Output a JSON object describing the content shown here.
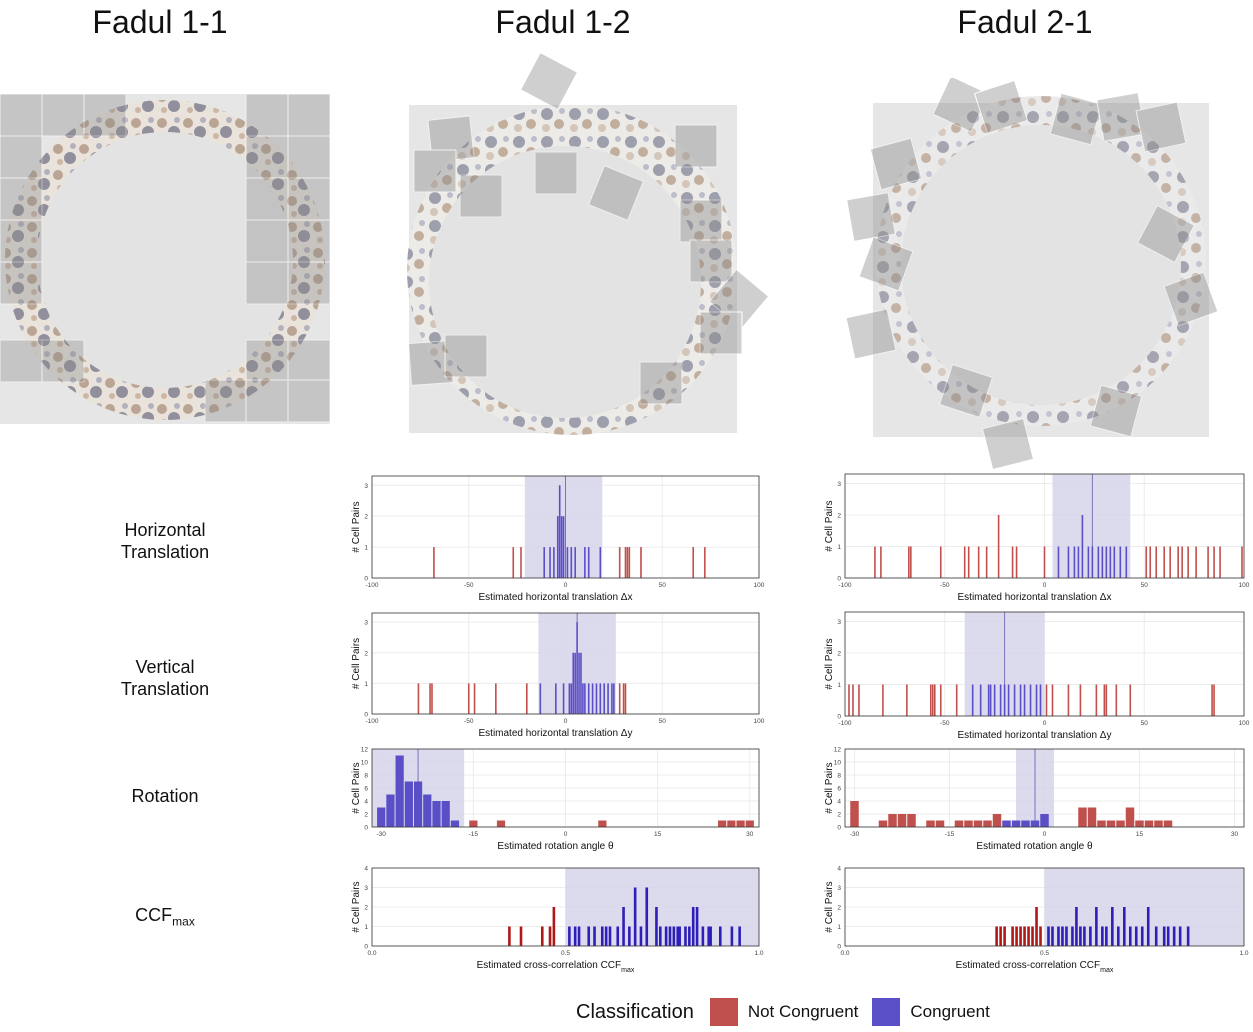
{
  "columns": [
    "Fadul 1-1",
    "Fadul 1-2",
    "Fadul 2-1"
  ],
  "row_labels": {
    "horizontal": [
      "Horizontal",
      "Translation"
    ],
    "vertical": [
      "Vertical",
      "Translation"
    ],
    "rotation": [
      "Rotation"
    ],
    "ccf_main": "CCF",
    "ccf_sub": "max"
  },
  "colors": {
    "not_congruent": "#c0504d",
    "congruent": "#5b4fc7",
    "band": "#d6d3ea",
    "ccf_red": "#b01818",
    "ccf_blue": "#2e1fb8"
  },
  "legend": {
    "title": "Classification",
    "items": [
      "Not Congruent",
      "Congruent"
    ]
  },
  "chart_data": [
    {
      "id": "c12_dx",
      "type": "bar",
      "ylabel": "# Cell Pairs",
      "xlabel": "Estimated horizontal translation Δx",
      "xlim": [
        -100,
        100
      ],
      "ylim": [
        0,
        3.3
      ],
      "xticks": [
        -100,
        -50,
        0,
        50,
        100
      ],
      "yticks": [
        0,
        1,
        2,
        3
      ],
      "band": [
        -21,
        19
      ],
      "vline": 0,
      "red": [
        [
          -68,
          1
        ],
        [
          -27,
          1
        ],
        [
          -23,
          1
        ],
        [
          28,
          1
        ],
        [
          31,
          1
        ],
        [
          32,
          1
        ],
        [
          33,
          1
        ],
        [
          39,
          1
        ],
        [
          66,
          1
        ],
        [
          72,
          1
        ]
      ],
      "blue": [
        [
          -11,
          1
        ],
        [
          -8,
          1
        ],
        [
          -6,
          1
        ],
        [
          -4,
          2
        ],
        [
          -3,
          3
        ],
        [
          -2,
          2
        ],
        [
          -1,
          2
        ],
        [
          1,
          1
        ],
        [
          3,
          1
        ],
        [
          5,
          1
        ],
        [
          10,
          1
        ],
        [
          12,
          1
        ],
        [
          18,
          1
        ]
      ]
    },
    {
      "id": "c21_dx",
      "type": "bar",
      "ylabel": "# Cell Pairs",
      "xlabel": "Estimated horizontal translation Δx",
      "xlim": [
        -100,
        100
      ],
      "ylim": [
        0,
        3.3
      ],
      "xticks": [
        -100,
        -50,
        0,
        50,
        100
      ],
      "yticks": [
        0,
        1,
        2,
        3
      ],
      "band": [
        4,
        43
      ],
      "vline": 24,
      "red": [
        [
          -85,
          1
        ],
        [
          -82,
          1
        ],
        [
          -68,
          1
        ],
        [
          -67,
          1
        ],
        [
          -52,
          1
        ],
        [
          -40,
          1
        ],
        [
          -38,
          1
        ],
        [
          -33,
          1
        ],
        [
          -29,
          1
        ],
        [
          -23,
          2
        ],
        [
          -16,
          1
        ],
        [
          -14,
          1
        ],
        [
          0,
          1
        ],
        [
          51,
          1
        ],
        [
          53,
          1
        ],
        [
          56,
          1
        ],
        [
          60,
          1
        ],
        [
          63,
          1
        ],
        [
          67,
          1
        ],
        [
          69,
          1
        ],
        [
          72,
          1
        ],
        [
          76,
          1
        ],
        [
          82,
          1
        ],
        [
          85,
          1
        ],
        [
          88,
          1
        ],
        [
          99,
          1
        ]
      ],
      "blue": [
        [
          7,
          1
        ],
        [
          12,
          1
        ],
        [
          15,
          1
        ],
        [
          17,
          1
        ],
        [
          19,
          2
        ],
        [
          22,
          1
        ],
        [
          24,
          1
        ],
        [
          27,
          1
        ],
        [
          29,
          1
        ],
        [
          31,
          1
        ],
        [
          33,
          1
        ],
        [
          35,
          1
        ],
        [
          38,
          1
        ],
        [
          41,
          1
        ]
      ]
    },
    {
      "id": "c12_dy",
      "type": "bar",
      "ylabel": "# Cell Pairs",
      "xlabel": "Estimated horizontal translation Δy",
      "xlim": [
        -100,
        100
      ],
      "ylim": [
        0,
        3.3
      ],
      "xticks": [
        -100,
        -50,
        0,
        50,
        100
      ],
      "yticks": [
        0,
        1,
        2,
        3
      ],
      "band": [
        -14,
        26
      ],
      "vline": 6,
      "red": [
        [
          -76,
          1
        ],
        [
          -70,
          1
        ],
        [
          -69,
          1
        ],
        [
          -50,
          1
        ],
        [
          -47,
          1
        ],
        [
          -36,
          1
        ],
        [
          -20,
          1
        ],
        [
          28,
          1
        ],
        [
          30,
          1
        ],
        [
          31,
          1
        ]
      ],
      "blue": [
        [
          -13,
          1
        ],
        [
          -5,
          1
        ],
        [
          -1,
          1
        ],
        [
          2,
          1
        ],
        [
          3,
          1
        ],
        [
          4,
          2
        ],
        [
          5,
          2
        ],
        [
          6,
          3
        ],
        [
          7,
          2
        ],
        [
          8,
          2
        ],
        [
          9,
          1
        ],
        [
          10,
          1
        ],
        [
          12,
          1
        ],
        [
          14,
          1
        ],
        [
          16,
          1
        ],
        [
          18,
          1
        ],
        [
          20,
          1
        ],
        [
          22,
          1
        ],
        [
          24,
          1
        ],
        [
          25,
          1
        ]
      ]
    },
    {
      "id": "c21_dy",
      "type": "bar",
      "ylabel": "# Cell Pairs",
      "xlabel": "Estimated horizontal translation Δy",
      "xlim": [
        -100,
        100
      ],
      "ylim": [
        0,
        3.3
      ],
      "xticks": [
        -100,
        -50,
        0,
        50,
        100
      ],
      "yticks": [
        0,
        1,
        2,
        3
      ],
      "band": [
        -40,
        0
      ],
      "vline": -20,
      "red": [
        [
          -98,
          1
        ],
        [
          -96,
          1
        ],
        [
          -93,
          1
        ],
        [
          -81,
          1
        ],
        [
          -69,
          1
        ],
        [
          -57,
          1
        ],
        [
          -56,
          1
        ],
        [
          -55,
          1
        ],
        [
          -52,
          1
        ],
        [
          -44,
          1
        ],
        [
          1,
          1
        ],
        [
          4,
          1
        ],
        [
          12,
          1
        ],
        [
          18,
          1
        ],
        [
          26,
          1
        ],
        [
          30,
          1
        ],
        [
          31,
          1
        ],
        [
          36,
          1
        ],
        [
          43,
          1
        ],
        [
          84,
          1
        ],
        [
          85,
          1
        ]
      ],
      "blue": [
        [
          -36,
          1
        ],
        [
          -32,
          1
        ],
        [
          -28,
          1
        ],
        [
          -27,
          1
        ],
        [
          -25,
          1
        ],
        [
          -22,
          1
        ],
        [
          -20,
          1
        ],
        [
          -18,
          1
        ],
        [
          -15,
          1
        ],
        [
          -12,
          1
        ],
        [
          -10,
          1
        ],
        [
          -7,
          1
        ],
        [
          -4,
          1
        ],
        [
          -2,
          1
        ]
      ]
    },
    {
      "id": "c12_rot",
      "type": "histogram",
      "ylabel": "# Cell Pairs",
      "xlabel": "Estimated rotation angle θ",
      "xlim": [
        -31.5,
        31.5
      ],
      "ylim": [
        0,
        12
      ],
      "xticks": [
        -30,
        -15,
        0,
        15,
        30
      ],
      "yticks": [
        0,
        2,
        4,
        6,
        8,
        10,
        12
      ],
      "band": [
        -31.5,
        -16.5
      ],
      "vline": -24,
      "binwidth": 1.5,
      "blue": [
        [
          -30,
          3
        ],
        [
          -28.5,
          5
        ],
        [
          -27,
          11
        ],
        [
          -25.5,
          7
        ],
        [
          -24,
          7
        ],
        [
          -22.5,
          5
        ],
        [
          -21,
          4
        ],
        [
          -19.5,
          4
        ],
        [
          -18,
          1
        ]
      ],
      "red": [
        [
          -15,
          1
        ],
        [
          -10.5,
          1
        ],
        [
          6,
          1
        ],
        [
          25.5,
          1
        ],
        [
          27,
          1
        ],
        [
          28.5,
          1
        ],
        [
          30,
          1
        ]
      ]
    },
    {
      "id": "c21_rot",
      "type": "histogram",
      "ylabel": "# Cell Pairs",
      "xlabel": "Estimated rotation angle θ",
      "xlim": [
        -31.5,
        31.5
      ],
      "ylim": [
        0,
        12
      ],
      "xticks": [
        -30,
        -15,
        0,
        15,
        30
      ],
      "yticks": [
        0,
        2,
        4,
        6,
        8,
        10,
        12
      ],
      "band": [
        -4.5,
        1.5
      ],
      "vline": -1.5,
      "binwidth": 1.5,
      "red": [
        [
          -30,
          4
        ],
        [
          -25.5,
          1
        ],
        [
          -24,
          2
        ],
        [
          -22.5,
          2
        ],
        [
          -21,
          2
        ],
        [
          -18,
          1
        ],
        [
          -16.5,
          1
        ],
        [
          -13.5,
          1
        ],
        [
          -12,
          1
        ],
        [
          -10.5,
          1
        ],
        [
          -9,
          1
        ],
        [
          -7.5,
          2
        ],
        [
          6,
          3
        ],
        [
          7.5,
          3
        ],
        [
          9,
          1
        ],
        [
          10.5,
          1
        ],
        [
          12,
          1
        ],
        [
          13.5,
          3
        ],
        [
          15,
          1
        ],
        [
          16.5,
          1
        ],
        [
          18,
          1
        ],
        [
          19.5,
          1
        ]
      ],
      "blue": [
        [
          -6,
          1
        ],
        [
          -4.5,
          1
        ],
        [
          -3,
          1
        ],
        [
          -1.5,
          1
        ],
        [
          0,
          2
        ]
      ]
    },
    {
      "id": "c12_ccf",
      "type": "bar",
      "ylabel": "# Cell Pairs",
      "xlabel": "Estimated cross-correlation CCF",
      "xlabel_sub": "max",
      "xlim": [
        0,
        1
      ],
      "ylim": [
        0,
        4
      ],
      "xticks": [
        0.0,
        0.5,
        1.0
      ],
      "yticks": [
        0,
        1,
        2,
        3,
        4
      ],
      "xtick_labels": [
        "0.0",
        "0.5",
        "1.0"
      ],
      "band": [
        0.5,
        1.0
      ],
      "vline": null,
      "ccf": true,
      "red": [
        [
          0.355,
          1
        ],
        [
          0.385,
          1
        ],
        [
          0.44,
          1
        ],
        [
          0.46,
          1
        ],
        [
          0.47,
          2
        ]
      ],
      "blue": [
        [
          0.51,
          1
        ],
        [
          0.525,
          1
        ],
        [
          0.535,
          1
        ],
        [
          0.56,
          1
        ],
        [
          0.575,
          1
        ],
        [
          0.595,
          1
        ],
        [
          0.605,
          1
        ],
        [
          0.615,
          1
        ],
        [
          0.635,
          1
        ],
        [
          0.65,
          2
        ],
        [
          0.665,
          1
        ],
        [
          0.68,
          3
        ],
        [
          0.695,
          1
        ],
        [
          0.71,
          3
        ],
        [
          0.735,
          2
        ],
        [
          0.745,
          1
        ],
        [
          0.76,
          1
        ],
        [
          0.77,
          1
        ],
        [
          0.78,
          1
        ],
        [
          0.79,
          1
        ],
        [
          0.795,
          1
        ],
        [
          0.81,
          1
        ],
        [
          0.82,
          1
        ],
        [
          0.83,
          2
        ],
        [
          0.84,
          2
        ],
        [
          0.855,
          1
        ],
        [
          0.87,
          1
        ],
        [
          0.875,
          1
        ],
        [
          0.9,
          1
        ],
        [
          0.93,
          1
        ],
        [
          0.95,
          1
        ]
      ]
    },
    {
      "id": "c21_ccf",
      "type": "bar",
      "ylabel": "# Cell Pairs",
      "xlabel": "Estimated cross-correlation CCF",
      "xlabel_sub": "max",
      "xlim": [
        0,
        1
      ],
      "ylim": [
        0,
        4
      ],
      "xticks": [
        0.0,
        0.5,
        1.0
      ],
      "yticks": [
        0,
        1,
        2,
        3,
        4
      ],
      "xtick_labels": [
        "0.0",
        "0.5",
        "1.0"
      ],
      "band": [
        0.5,
        1.0
      ],
      "vline": null,
      "ccf": true,
      "red": [
        [
          0.38,
          1
        ],
        [
          0.39,
          1
        ],
        [
          0.4,
          1
        ],
        [
          0.42,
          1
        ],
        [
          0.43,
          1
        ],
        [
          0.44,
          1
        ],
        [
          0.45,
          1
        ],
        [
          0.46,
          1
        ],
        [
          0.47,
          1
        ],
        [
          0.48,
          2
        ],
        [
          0.49,
          1
        ]
      ],
      "blue": [
        [
          0.51,
          1
        ],
        [
          0.52,
          1
        ],
        [
          0.535,
          1
        ],
        [
          0.545,
          1
        ],
        [
          0.555,
          1
        ],
        [
          0.57,
          1
        ],
        [
          0.58,
          2
        ],
        [
          0.59,
          1
        ],
        [
          0.6,
          1
        ],
        [
          0.615,
          1
        ],
        [
          0.63,
          2
        ],
        [
          0.645,
          1
        ],
        [
          0.655,
          1
        ],
        [
          0.67,
          2
        ],
        [
          0.685,
          1
        ],
        [
          0.7,
          2
        ],
        [
          0.715,
          1
        ],
        [
          0.73,
          1
        ],
        [
          0.745,
          1
        ],
        [
          0.76,
          2
        ],
        [
          0.78,
          1
        ],
        [
          0.8,
          1
        ],
        [
          0.81,
          1
        ],
        [
          0.825,
          1
        ],
        [
          0.84,
          1
        ],
        [
          0.86,
          1
        ]
      ]
    }
  ]
}
